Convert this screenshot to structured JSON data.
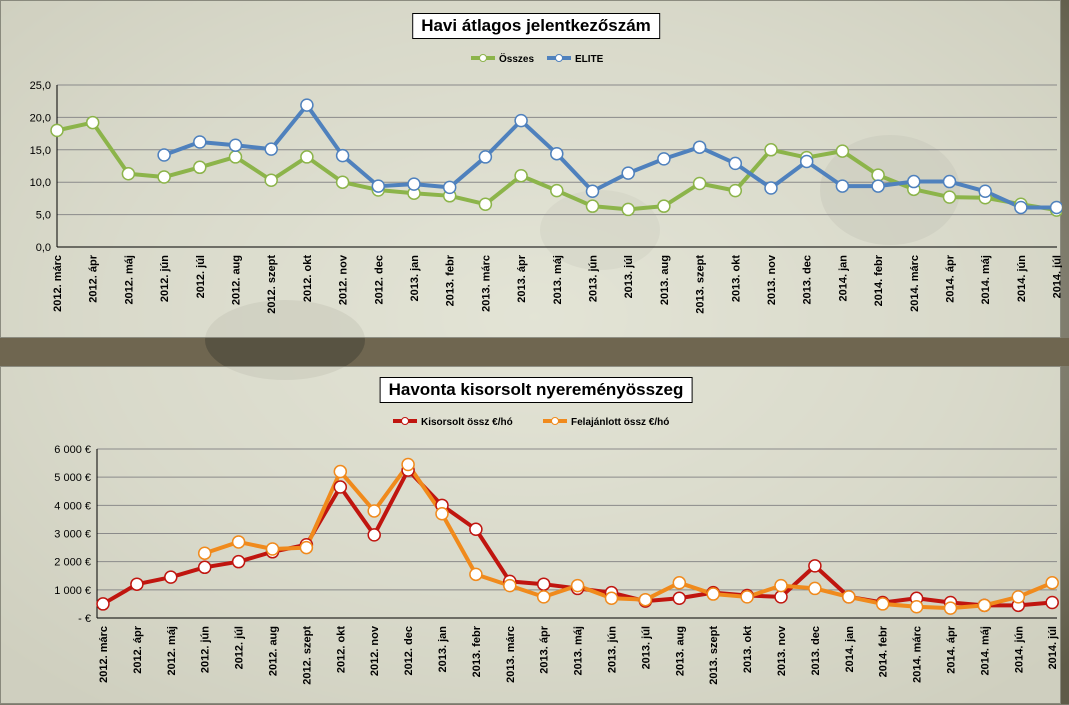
{
  "chart_data": [
    {
      "type": "line",
      "title": "Havi átlagos jelentkezőszám",
      "categories": [
        "2012. márc",
        "2012. ápr",
        "2012. máj",
        "2012. jún",
        "2012. júl",
        "2012. aug",
        "2012. szept",
        "2012. okt",
        "2012. nov",
        "2012. dec",
        "2013. jan",
        "2013. febr",
        "2013. márc",
        "2013. ápr",
        "2013. máj",
        "2013. jún",
        "2013. júl",
        "2013. aug",
        "2013. szept",
        "2013. okt",
        "2013. nov",
        "2013. dec",
        "2014. jan",
        "2014. febr",
        "2014. márc",
        "2014. ápr",
        "2014. máj",
        "2014. jún",
        "2014. júl"
      ],
      "series": [
        {
          "name": "Összes",
          "color": "#8cb44a",
          "values": [
            18.0,
            19.2,
            11.3,
            10.8,
            12.3,
            13.9,
            10.3,
            13.9,
            10.0,
            8.8,
            8.3,
            7.9,
            6.6,
            11.0,
            8.7,
            6.3,
            5.8,
            6.3,
            9.8,
            8.7,
            15.0,
            13.8,
            14.8,
            11.1,
            8.9,
            7.7,
            7.6,
            6.6,
            5.7
          ]
        },
        {
          "name": "ELITE",
          "color": "#4f81bd",
          "values": [
            null,
            null,
            null,
            14.2,
            16.2,
            15.7,
            15.1,
            21.9,
            14.1,
            9.4,
            9.7,
            9.2,
            13.9,
            19.5,
            14.4,
            8.6,
            11.4,
            13.6,
            15.4,
            12.9,
            9.1,
            13.2,
            9.4,
            9.4,
            10.1,
            10.1,
            8.6,
            6.1,
            6.1
          ]
        }
      ],
      "ylim": [
        0,
        25
      ],
      "yticks": [
        "0,0",
        "5,0",
        "10,0",
        "15,0",
        "20,0",
        "25,0"
      ],
      "legend": "top-center"
    },
    {
      "type": "line",
      "title": "Havonta kisorsolt nyereményösszeg",
      "categories": [
        "2012. márc",
        "2012. ápr",
        "2012. máj",
        "2012. jún",
        "2012. júl",
        "2012. aug",
        "2012. szept",
        "2012. okt",
        "2012. nov",
        "2012. dec",
        "2013. jan",
        "2013. febr",
        "2013. márc",
        "2013. ápr",
        "2013. máj",
        "2013. jún",
        "2013. júl",
        "2013. aug",
        "2013. szept",
        "2013. okt",
        "2013. nov",
        "2013. dec",
        "2014. jan",
        "2014. febr",
        "2014. márc",
        "2014. ápr",
        "2014. máj",
        "2014. jún",
        "2014. júl"
      ],
      "series": [
        {
          "name": "Kisorsolt össz €/hó",
          "color": "#c0150f",
          "values": [
            500,
            1200,
            1450,
            1800,
            2000,
            2350,
            2600,
            4650,
            2950,
            5250,
            4000,
            3150,
            1300,
            1200,
            1050,
            900,
            600,
            700,
            900,
            800,
            750,
            1850,
            750,
            550,
            700,
            550,
            450,
            450,
            550
          ]
        },
        {
          "name": "Felajánlott össz €/hó",
          "color": "#f08a1c",
          "values": [
            null,
            null,
            null,
            2300,
            2700,
            2450,
            2500,
            5200,
            3800,
            5450,
            3700,
            1550,
            1150,
            750,
            1150,
            700,
            650,
            1250,
            850,
            750,
            1150,
            1050,
            750,
            500,
            400,
            350,
            450,
            750,
            1250
          ]
        }
      ],
      "ylim": [
        0,
        6000
      ],
      "yticks": [
        "-  €",
        "1 000 €",
        "2 000 €",
        "3 000 €",
        "4 000 €",
        "5 000 €",
        "6 000 €"
      ],
      "legend": "top-center"
    }
  ]
}
